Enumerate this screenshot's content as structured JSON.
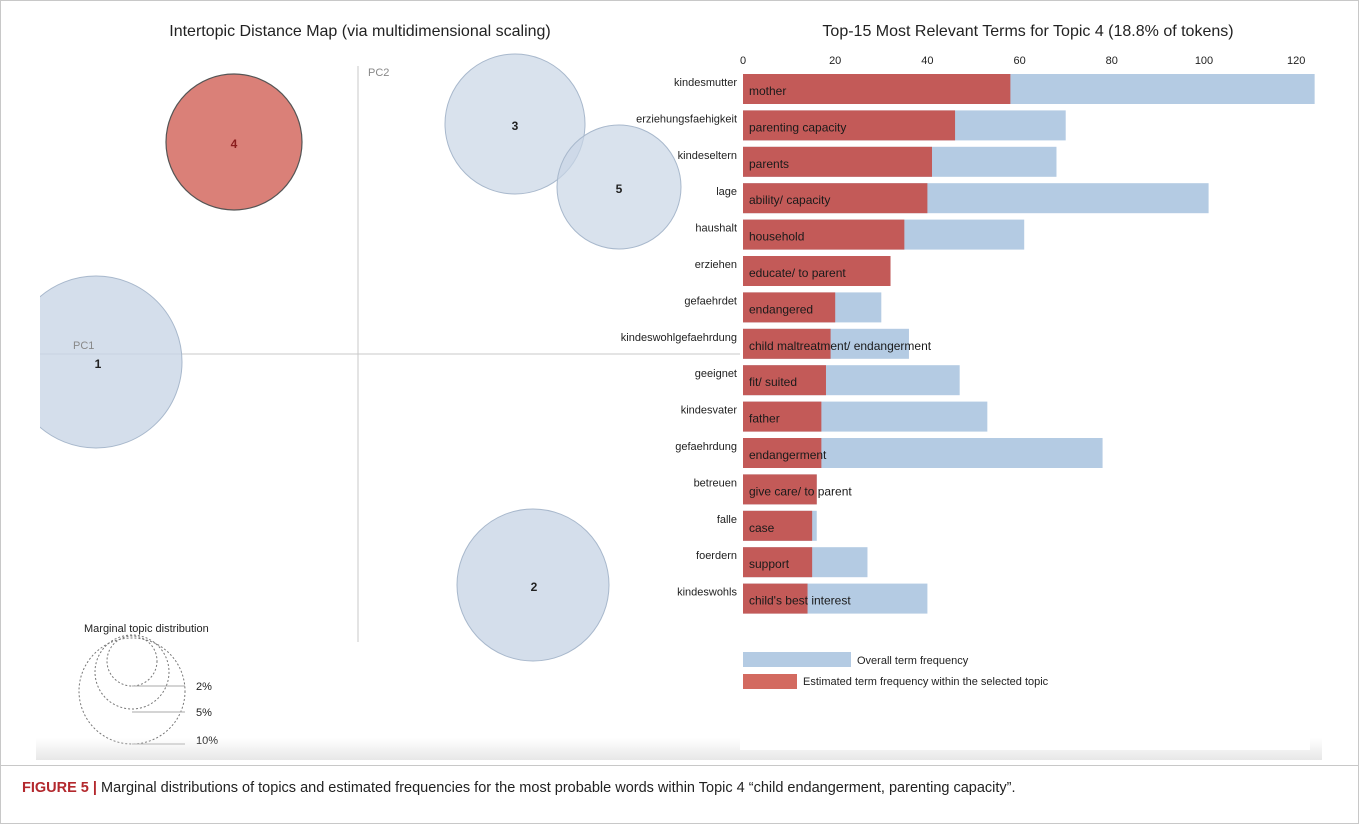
{
  "left_panel": {
    "title": "Intertopic Distance Map (via multidimensional scaling)",
    "pc1_label": "PC1",
    "pc2_label": "PC2",
    "topics": [
      {
        "label": "1",
        "selected": false
      },
      {
        "label": "2",
        "selected": false
      },
      {
        "label": "3",
        "selected": false
      },
      {
        "label": "4",
        "selected": true
      },
      {
        "label": "5",
        "selected": false
      }
    ],
    "marginal_legend": {
      "title": "Marginal topic distribution",
      "levels": [
        "2%",
        "5%",
        "10%"
      ]
    }
  },
  "chart_data": {
    "type": "bar",
    "title": "Top-15 Most Relevant Terms for Topic 4 (18.8% of tokens)",
    "orientation": "horizontal",
    "xlim": [
      0,
      125
    ],
    "xticks": [
      0,
      20,
      40,
      60,
      80,
      100,
      120
    ],
    "categories": [
      "kindesmutter",
      "erziehungsfaehigkeit",
      "kindeseltern",
      "lage",
      "haushalt",
      "erziehen",
      "gefaehrdet",
      "kindeswohlgefaehrdung",
      "geeignet",
      "kindesvater",
      "gefaehrdung",
      "betreuen",
      "falle",
      "foerdern",
      "kindeswohls"
    ],
    "translations": [
      "mother",
      "parenting capacity",
      "parents",
      "ability/ capacity",
      "household",
      "educate/ to parent",
      "endangered",
      "child maltreatment/ endangerment",
      "fit/ suited",
      "father",
      "endangerment",
      "give care/ to parent",
      "case",
      "support",
      "child's best interest"
    ],
    "series": [
      {
        "name": "Overall term frequency",
        "color": "#b4cbe3",
        "values": [
          124,
          70,
          68,
          101,
          61,
          32,
          30,
          36,
          47,
          53,
          78,
          16,
          16,
          27,
          40
        ]
      },
      {
        "name": "Estimated term frequency within the selected topic",
        "color": "#c35a58",
        "values": [
          58,
          46,
          41,
          40,
          35,
          32,
          20,
          19,
          18,
          17,
          17,
          16,
          15,
          15,
          14
        ]
      }
    ],
    "legend_position": "bottom"
  },
  "caption": {
    "label": "FIGURE 5 |",
    "text": "Marginal distributions of topics and estimated frequencies for the most probable words within Topic 4 “child endangerment, parenting capacity”."
  },
  "colors": {
    "topic_fill": "#c9d6e6",
    "topic_selected": "#d36a60",
    "bar_overall": "#b4cbe3",
    "bar_topic": "#c35a58"
  }
}
